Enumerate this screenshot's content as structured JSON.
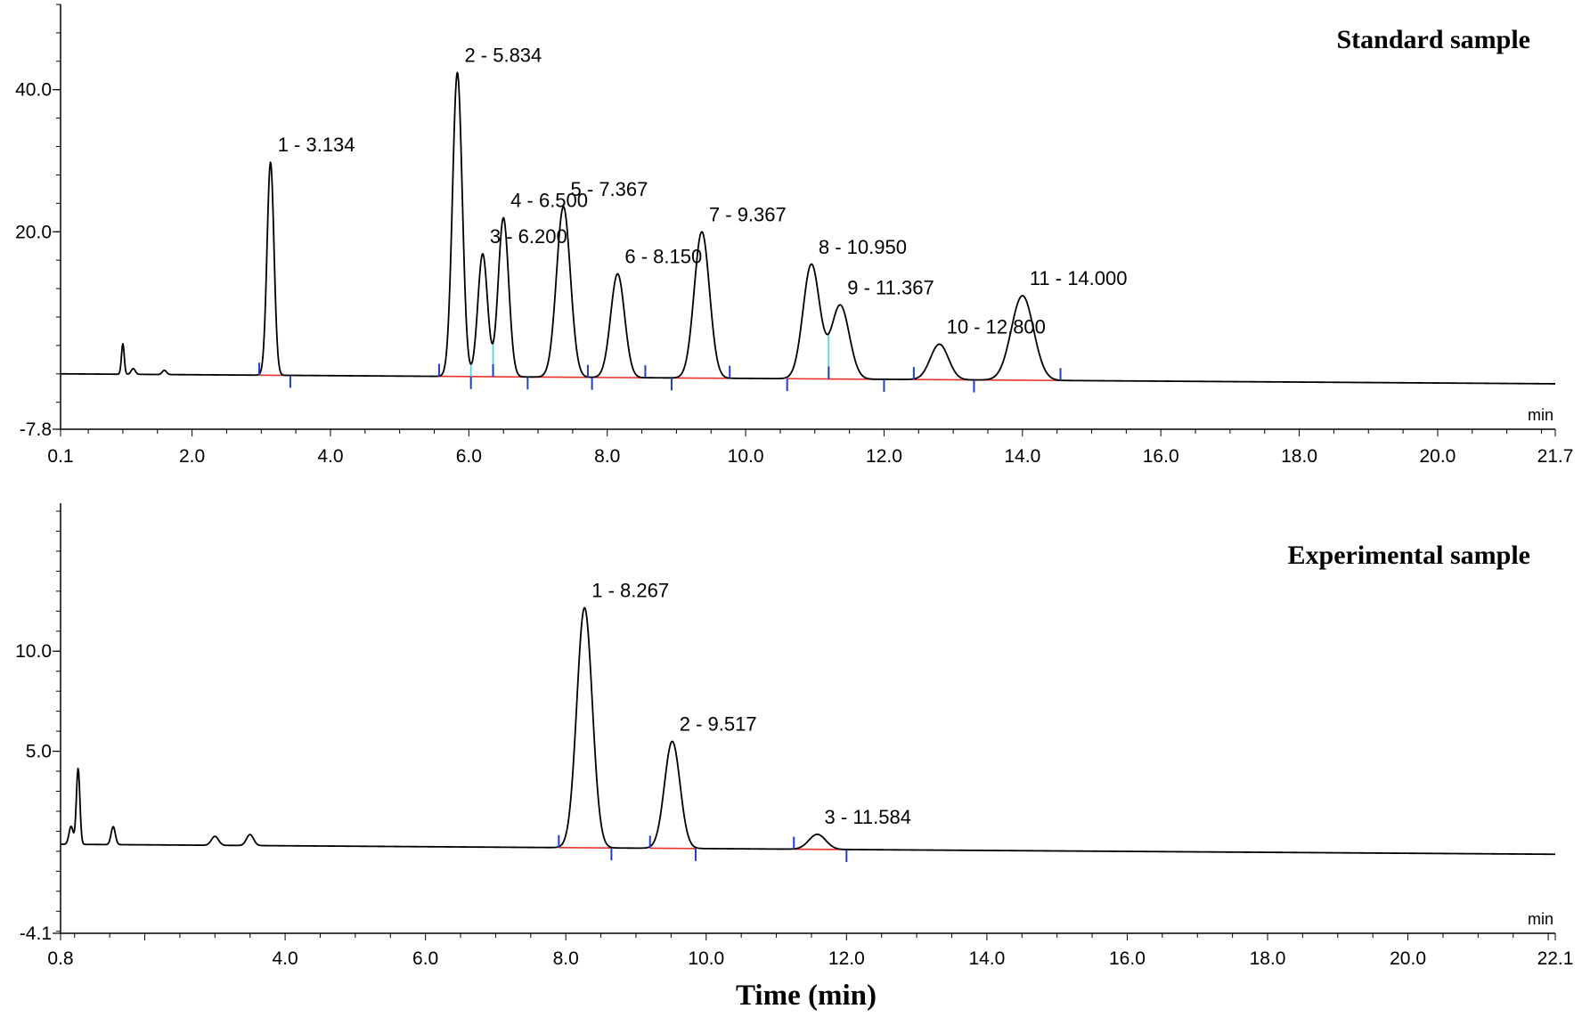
{
  "figure": {
    "xlabel": "Time (min)"
  },
  "colors": {
    "trace": "#000000",
    "baseline": "#e8322c",
    "marker": "#1f3fc7",
    "split": "#5ad6d0"
  },
  "chart_data": [
    {
      "type": "line",
      "title": "Standard sample",
      "x_unit": "min",
      "xlim": [
        0.1,
        21.7
      ],
      "ylim": [
        -7.8,
        52.0
      ],
      "x_ticks": [
        "0.1",
        "2.0",
        "4.0",
        "6.0",
        "8.0",
        "10.0",
        "12.0",
        "14.0",
        "16.0",
        "18.0",
        "20.0",
        "21.7"
      ],
      "x_tick_values": [
        0.1,
        2.0,
        4.0,
        6.0,
        8.0,
        10.0,
        12.0,
        14.0,
        16.0,
        18.0,
        20.0,
        21.7
      ],
      "y_ticks": [
        "40.0",
        "20.0",
        "-7.8"
      ],
      "y_tick_values": [
        40.0,
        20.0,
        -7.8
      ],
      "baseline_start": 0.0,
      "baseline_end": -1.4,
      "peaks": [
        {
          "label": "1 - 3.134",
          "rt": 3.134,
          "height": 30.0,
          "sigma": 0.05
        },
        {
          "label": "2 - 5.834",
          "rt": 5.834,
          "height": 42.8,
          "sigma": 0.07
        },
        {
          "label": "3 - 6.200",
          "rt": 6.2,
          "height": 17.3,
          "sigma": 0.07
        },
        {
          "label": "4 - 6.500",
          "rt": 6.5,
          "height": 22.4,
          "sigma": 0.075
        },
        {
          "label": "5 - 7.367",
          "rt": 7.367,
          "height": 24.0,
          "sigma": 0.1
        },
        {
          "label": "6 - 8.150",
          "rt": 8.15,
          "height": 14.6,
          "sigma": 0.1
        },
        {
          "label": "7 - 9.367",
          "rt": 9.367,
          "height": 20.6,
          "sigma": 0.11
        },
        {
          "label": "8 - 10.950",
          "rt": 10.95,
          "height": 16.1,
          "sigma": 0.12
        },
        {
          "label": "9 - 11.367",
          "rt": 11.367,
          "height": 10.4,
          "sigma": 0.13
        },
        {
          "label": "10 - 12.800",
          "rt": 12.8,
          "height": 5.0,
          "sigma": 0.13
        },
        {
          "label": "11 - 14.000",
          "rt": 14.0,
          "height": 11.9,
          "sigma": 0.16
        }
      ],
      "minor_peaks": [
        {
          "rt": 1.0,
          "height": 4.3,
          "sigma": 0.02
        },
        {
          "rt": 1.15,
          "height": 0.8,
          "sigma": 0.03
        },
        {
          "rt": 1.6,
          "height": 0.6,
          "sigma": 0.03
        }
      ],
      "integration_markers": [
        2.97,
        3.42,
        5.57,
        6.03,
        6.35,
        6.85,
        7.72,
        7.78,
        8.55,
        8.93,
        9.77,
        10.6,
        11.2,
        12.0,
        12.43,
        13.3,
        14.55
      ],
      "split_lines": [
        6.03,
        6.35,
        11.2
      ]
    },
    {
      "type": "line",
      "title": "Experimental sample",
      "x_unit": "min",
      "xlim": [
        0.8,
        22.1
      ],
      "ylim": [
        -4.1,
        17.4
      ],
      "x_ticks": [
        "0.8",
        "4.0",
        "6.0",
        "8.0",
        "10.0",
        "12.0",
        "14.0",
        "16.0",
        "18.0",
        "20.0",
        "22.1"
      ],
      "x_tick_values": [
        0.8,
        4.0,
        6.0,
        8.0,
        10.0,
        12.0,
        14.0,
        16.0,
        18.0,
        20.0,
        22.1
      ],
      "y_ticks": [
        "10.0",
        "5.0",
        "-4.1"
      ],
      "y_tick_values": [
        10.0,
        5.0,
        -4.1
      ],
      "baseline_start": 0.35,
      "baseline_end": -0.15,
      "peaks": [
        {
          "label": "1 - 8.267",
          "rt": 8.267,
          "height": 12.0,
          "sigma": 0.11
        },
        {
          "label": "2 - 9.517",
          "rt": 9.517,
          "height": 5.35,
          "sigma": 0.11
        },
        {
          "label": "3 - 11.584",
          "rt": 11.584,
          "height": 0.75,
          "sigma": 0.12
        }
      ],
      "minor_peaks": [
        {
          "rt": 1.05,
          "height": 3.8,
          "sigma": 0.025
        },
        {
          "rt": 0.95,
          "height": 0.9,
          "sigma": 0.03
        },
        {
          "rt": 1.55,
          "height": 0.9,
          "sigma": 0.03
        },
        {
          "rt": 3.0,
          "height": 0.45,
          "sigma": 0.05
        },
        {
          "rt": 3.5,
          "height": 0.55,
          "sigma": 0.05
        }
      ],
      "integration_markers": [
        7.9,
        8.65,
        9.2,
        9.85,
        11.25,
        12.0
      ],
      "split_lines": []
    }
  ]
}
